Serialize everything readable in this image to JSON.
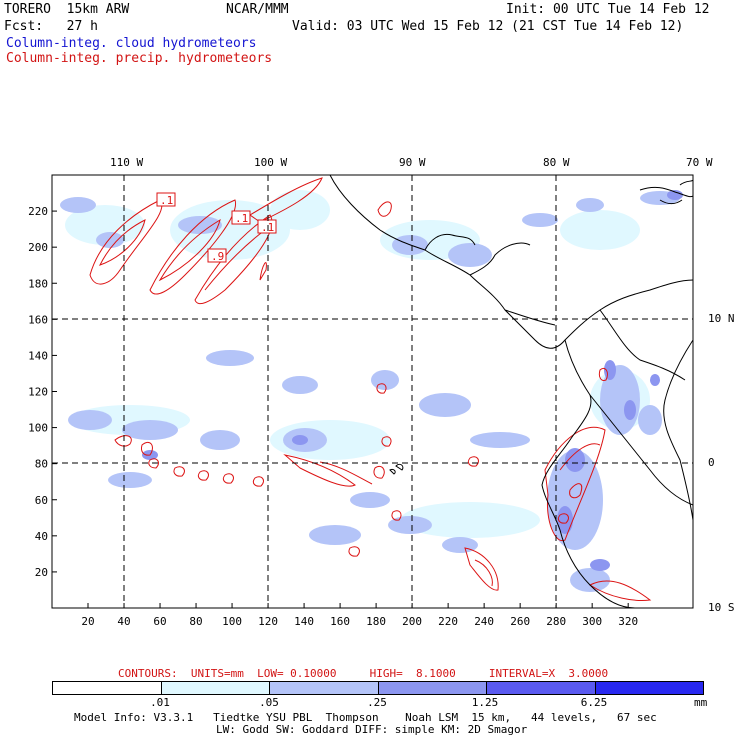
{
  "header": {
    "model": "TORERO  15km ARW",
    "org": "NCAR/MMM",
    "init": "Init: 00 UTC Tue 14 Feb 12",
    "fcst": "Fcst:   27 h",
    "valid": "Valid: 03 UTC Wed 15 Feb 12 (21 CST Tue 14 Feb 12)",
    "field_cloud": "Column-integ. cloud hydrometeors",
    "field_precip": "Column-integ. precip. hydrometeors"
  },
  "colors": {
    "cloud_text": "#1414d2",
    "precip_text": "#d21414",
    "shade_1": "#e0f8ff",
    "shade_2": "#b4c4f8",
    "shade_3": "#8c96f0",
    "shade_4": "#5a5af0",
    "shade_5": "#2828f0",
    "contour": "#dc1414"
  },
  "map": {
    "lon_labels_top": [
      "110 W",
      "100 W",
      "90 W",
      "80 W",
      "70 W"
    ],
    "lat_labels_right": [
      "10 N",
      "0",
      "10 S"
    ],
    "x_ticks": [
      "20",
      "40",
      "60",
      "80",
      "100",
      "120",
      "140",
      "160",
      "180",
      "200",
      "220",
      "240",
      "260",
      "280",
      "300",
      "320"
    ],
    "y_ticks": [
      "20",
      "40",
      "60",
      "80",
      "100",
      "120",
      "140",
      "160",
      "180",
      "200",
      "220"
    ],
    "contour_labels": [
      ".1",
      ".1",
      ".1",
      ".9"
    ]
  },
  "legend": {
    "contours_text": "CONTOURS:  UNITS=mm  LOW= 0.10000     HIGH=  8.1000     INTERVAL=X  3.0000",
    "unit": "mm",
    "thresholds": [
      ".01",
      ".05",
      ".25",
      "1.25",
      "6.25"
    ]
  },
  "footer": {
    "line1": "Model Info: V3.3.1   Tiedtke YSU PBL  Thompson    Noah LSM  15 km,   44 levels,   67 sec",
    "line2": "LW: Godd SW: Goddard DIFF: simple KM: 2D Smagor"
  }
}
